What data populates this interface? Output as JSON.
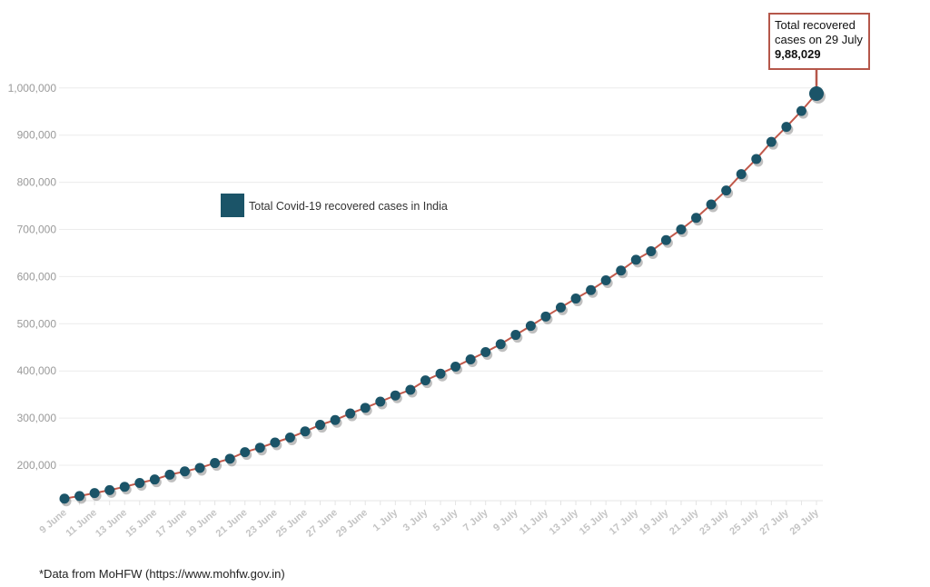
{
  "chart_data": {
    "type": "line",
    "title": "",
    "xlabel": "",
    "ylabel": "",
    "ylim": [
      125000,
      1000000
    ],
    "y_ticks": [
      "200,000",
      "300,000",
      "400,000",
      "500,000",
      "600,000",
      "700,000",
      "800,000",
      "900,000",
      "1,000,000"
    ],
    "y_tick_values": [
      200000,
      300000,
      400000,
      500000,
      600000,
      700000,
      800000,
      900000,
      1000000
    ],
    "grid": true,
    "legend_position": "upper-left-center",
    "colors": {
      "marker": "#1b5468",
      "line": "#c0594b",
      "annotation_border": "#b5574a",
      "grid": "#ececec"
    },
    "x": [
      "9 June",
      "10 June",
      "11 June",
      "12 June",
      "13 June",
      "14 June",
      "15 June",
      "16 June",
      "17 June",
      "18 June",
      "19 June",
      "20 June",
      "21 June",
      "22 June",
      "23 June",
      "24 June",
      "25 June",
      "26 June",
      "27 June",
      "28 June",
      "29 June",
      "30 June",
      "1 July",
      "2 July",
      "3 July",
      "4 July",
      "5 July",
      "6 July",
      "7 July",
      "8 July",
      "9 July",
      "10 July",
      "11 July",
      "12 July",
      "13 July",
      "14 July",
      "15 July",
      "16 July",
      "17 July",
      "18 July",
      "19 July",
      "20 July",
      "21 July",
      "22 July",
      "23 July",
      "24 July",
      "25 July",
      "26 July",
      "27 July",
      "28 July",
      "29 July"
    ],
    "x_tick_labels_shown": "every second date",
    "series": [
      {
        "name": "Total Covid-19 recovered cases in India",
        "values": [
          129215,
          134670,
          141029,
          147195,
          154330,
          162379,
          169798,
          180013,
          186935,
          194325,
          204711,
          213831,
          227756,
          237196,
          248190,
          258685,
          271697,
          285637,
          295881,
          309713,
          321723,
          334822,
          347979,
          359860,
          379892,
          394227,
          409083,
          424433,
          439948,
          456831,
          476378,
          495513,
          515386,
          534621,
          553471,
          571460,
          592032,
          612815,
          635757,
          653751,
          677423,
          700087,
          724578,
          753050,
          782607,
          817209,
          849432,
          885577,
          917568,
          951166,
          988029
        ]
      }
    ],
    "annotation": {
      "line1": "Total recovered",
      "line2": "cases on 29 July",
      "value": "9,88,029"
    }
  },
  "footnote": "*Data from MoHFW (https://www.mohfw.gov.in)"
}
